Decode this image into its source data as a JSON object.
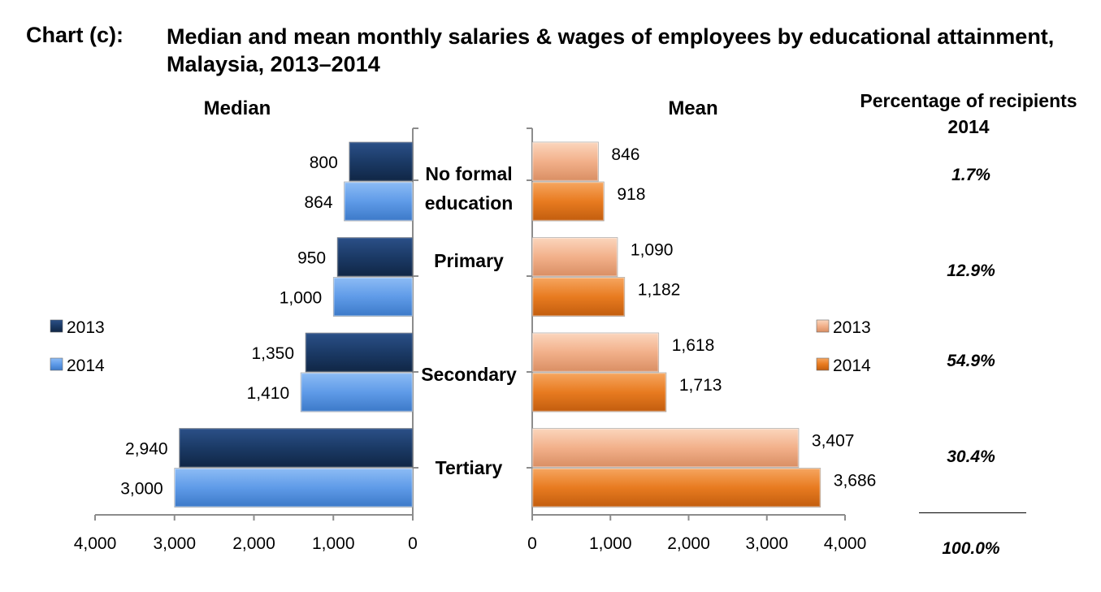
{
  "header": {
    "chart_label": "Chart (c):",
    "title": "Median and mean monthly salaries & wages of employees by educational attainment, Malaysia, 2013–2014"
  },
  "percentage_column": {
    "header": "Percentage of recipients 2014",
    "values": [
      "1.7%",
      "12.9%",
      "54.9%",
      "30.4%"
    ],
    "total": "100.0%"
  },
  "colors": {
    "median_2013": "#1b3a66",
    "median_2014": "#5f9be8",
    "mean_2013": "#f2b08a",
    "mean_2014": "#e87b20"
  },
  "chart_data": [
    {
      "type": "bar",
      "title": "Median",
      "orientation": "horizontal",
      "x_direction": "reversed",
      "categories": [
        "No formal education",
        "Primary",
        "Secondary",
        "Tertiary"
      ],
      "series": [
        {
          "name": "2013",
          "values": [
            800,
            950,
            1350,
            2940
          ]
        },
        {
          "name": "2014",
          "values": [
            864,
            1000,
            1410,
            3000
          ]
        }
      ],
      "data_labels": [
        [
          "800",
          "950",
          "1,350",
          "2,940"
        ],
        [
          "864",
          "1,000",
          "1,410",
          "3,000"
        ]
      ],
      "xlim": [
        0,
        4000
      ],
      "x_ticks": [
        "0",
        "1,000",
        "2,000",
        "3,000",
        "4,000"
      ],
      "legend": "left"
    },
    {
      "type": "bar",
      "title": "Mean",
      "orientation": "horizontal",
      "categories": [
        "No formal education",
        "Primary",
        "Secondary",
        "Tertiary"
      ],
      "series": [
        {
          "name": "2013",
          "values": [
            846,
            1090,
            1618,
            3407
          ]
        },
        {
          "name": "2014",
          "values": [
            918,
            1182,
            1713,
            3686
          ]
        }
      ],
      "data_labels": [
        [
          "846",
          "1,090",
          "1,618",
          "3,407"
        ],
        [
          "918",
          "1,182",
          "1,713",
          "3,686"
        ]
      ],
      "xlim": [
        0,
        4000
      ],
      "x_ticks": [
        "0",
        "1,000",
        "2,000",
        "3,000",
        "4,000"
      ],
      "legend": "right"
    }
  ]
}
